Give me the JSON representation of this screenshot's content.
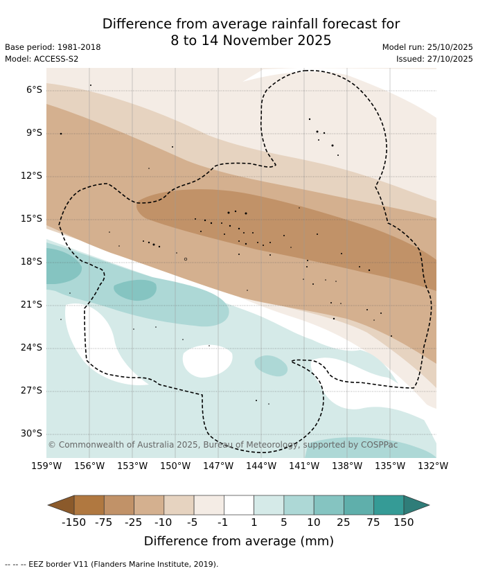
{
  "title": {
    "line1": "Difference from average rainfall forecast for",
    "line2": "8 to 14 November 2025"
  },
  "meta": {
    "base_period": "Base period: 1981-2018",
    "model": "Model: ACCESS-S2",
    "model_run": "Model run: 25/10/2025",
    "issued": "Issued: 27/10/2025"
  },
  "map": {
    "lat_labels": [
      "6°S",
      "9°S",
      "12°S",
      "15°S",
      "18°S",
      "21°S",
      "24°S",
      "27°S",
      "30°S"
    ],
    "lon_labels": [
      "159°W",
      "156°W",
      "153°W",
      "150°W",
      "147°W",
      "144°W",
      "141°W",
      "138°W",
      "135°W",
      "132°W"
    ],
    "copyright": "© Commonwealth of Australia 2025, Bureau of Meteorology, supported by COSPPac"
  },
  "colorbar": {
    "labels": [
      "-150",
      "-75",
      "-25",
      "-10",
      "-5",
      "-1",
      "1",
      "5",
      "10",
      "25",
      "75",
      "150"
    ],
    "colors": [
      "#8b5a2b",
      "#b07840",
      "#c19268",
      "#d4b08f",
      "#e6d3c0",
      "#f4ece5",
      "#ffffff",
      "#d5eae8",
      "#add8d6",
      "#85c4c1",
      "#5fafab",
      "#359b96",
      "#2f7d79"
    ],
    "title": "Difference from average (mm)"
  },
  "footnote": "--  --  -- EEZ border V11 (Flanders Marine Institute, 2019)."
}
